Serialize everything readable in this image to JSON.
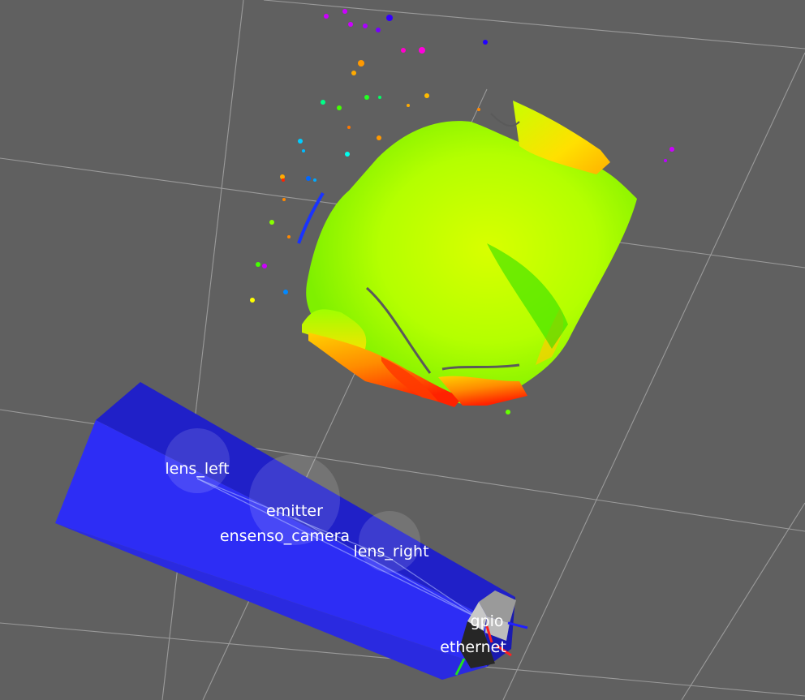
{
  "scene": {
    "background": "#606060",
    "grid_color": "#9a9a9a",
    "camera_body_color": "#2626f0",
    "frames": {
      "lens_left": "lens_left",
      "emitter": "emitter",
      "ensenso_camera": "ensenso_camera",
      "lens_right": "lens_right",
      "gpio": "gpio",
      "ethernet": "ethernet"
    },
    "axis_colors": {
      "x": "#ff2020",
      "y": "#20e020",
      "z": "#2020ff"
    },
    "point_cloud": {
      "color_scale": [
        "#ff1a00",
        "#ff9900",
        "#ffd000",
        "#d8ff00",
        "#88ff00",
        "#2ee000",
        "#00ccff",
        "#0040ff",
        "#cc00ff"
      ]
    }
  }
}
